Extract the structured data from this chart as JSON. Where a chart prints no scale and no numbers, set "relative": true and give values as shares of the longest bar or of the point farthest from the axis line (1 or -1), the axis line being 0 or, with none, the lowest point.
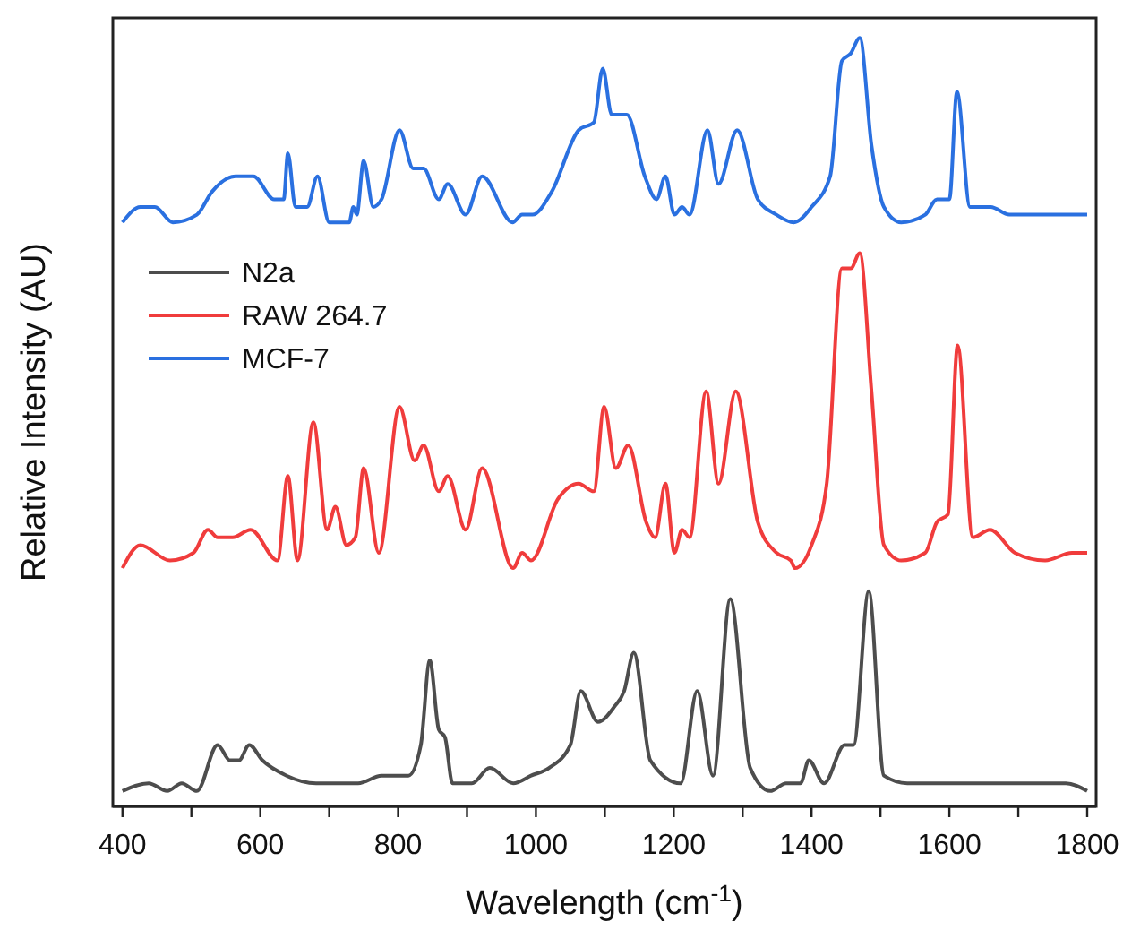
{
  "chart_data": {
    "type": "line",
    "relative": true,
    "xlabel": "Wavelength (cm$^{-1}$)",
    "ylabel": "Relative Intensity (AU)",
    "xlim": [
      386,
      1813
    ],
    "xticks": [
      400,
      {
        "value": 500,
        "label": null
      },
      600,
      {
        "value": 700,
        "label": null
      },
      800,
      {
        "value": 900,
        "label": null
      },
      1000,
      {
        "value": 1100,
        "label": null
      },
      1200,
      {
        "value": 1300,
        "label": null
      },
      1400,
      {
        "value": 1500,
        "label": null
      },
      1600,
      {
        "value": 1700,
        "label": null
      },
      1800
    ],
    "legend": "top left",
    "grid": false,
    "line_style": "solid",
    "marker": "none",
    "series": [
      {
        "name": "N2a",
        "color": "#4d4d4d",
        "x": [
          400,
          438,
          465,
          486,
          508,
          538,
          556,
          569,
          584,
          603,
          638,
          681,
          707,
          742,
          776,
          815,
          833,
          846,
          859,
          868,
          879,
          907,
          933,
          967,
          993,
          1019,
          1050,
          1065,
          1090,
          1114,
          1128,
          1142,
          1166,
          1210,
          1234,
          1257,
          1282,
          1311,
          1340,
          1363,
          1384,
          1396,
          1418,
          1448,
          1461,
          1483,
          1505,
          1539,
          1617,
          1721,
          1769,
          1800
        ],
        "values": [
          0.02,
          0.03,
          0.02,
          0.03,
          0.02,
          0.08,
          0.06,
          0.06,
          0.08,
          0.06,
          0.04,
          0.03,
          0.03,
          0.03,
          0.04,
          0.04,
          0.08,
          0.19,
          0.1,
          0.09,
          0.03,
          0.03,
          0.05,
          0.03,
          0.04,
          0.05,
          0.08,
          0.15,
          0.11,
          0.13,
          0.15,
          0.2,
          0.06,
          0.03,
          0.15,
          0.04,
          0.27,
          0.05,
          0.02,
          0.03,
          0.03,
          0.06,
          0.03,
          0.08,
          0.08,
          0.28,
          0.04,
          0.03,
          0.03,
          0.03,
          0.03,
          0.02
        ]
      },
      {
        "name": "RAW 264.7",
        "color": "#f03c3c",
        "x": [
          400,
          426,
          469,
          503,
          524,
          538,
          560,
          586,
          625,
          640,
          654,
          677,
          697,
          709,
          725,
          738,
          750,
          772,
          802,
          824,
          837,
          859,
          872,
          898,
          922,
          967,
          980,
          993,
          1032,
          1062,
          1084,
          1099,
          1116,
          1134,
          1160,
          1173,
          1188,
          1201,
          1212,
          1223,
          1247,
          1265,
          1290,
          1322,
          1349,
          1370,
          1376,
          1400,
          1422,
          1444,
          1457,
          1470,
          1487,
          1505,
          1530,
          1565,
          1582,
          1598,
          1612,
          1634,
          1659,
          1695,
          1739,
          1778,
          1800
        ],
        "values": [
          0.31,
          0.34,
          0.32,
          0.33,
          0.36,
          0.35,
          0.35,
          0.36,
          0.32,
          0.43,
          0.32,
          0.5,
          0.36,
          0.39,
          0.34,
          0.35,
          0.44,
          0.33,
          0.52,
          0.45,
          0.47,
          0.41,
          0.43,
          0.36,
          0.44,
          0.31,
          0.33,
          0.32,
          0.4,
          0.42,
          0.41,
          0.52,
          0.44,
          0.47,
          0.37,
          0.35,
          0.42,
          0.33,
          0.36,
          0.35,
          0.54,
          0.42,
          0.54,
          0.37,
          0.33,
          0.32,
          0.31,
          0.34,
          0.42,
          0.7,
          0.7,
          0.72,
          0.54,
          0.34,
          0.32,
          0.33,
          0.37,
          0.38,
          0.6,
          0.35,
          0.36,
          0.33,
          0.32,
          0.33,
          0.33
        ]
      },
      {
        "name": "MCF-7",
        "color": "#2a70e0",
        "x": [
          400,
          426,
          447,
          473,
          508,
          530,
          564,
          590,
          620,
          634,
          640,
          651,
          668,
          683,
          700,
          729,
          735,
          740,
          750,
          764,
          776,
          802,
          822,
          837,
          859,
          872,
          898,
          922,
          966,
          980,
          995,
          1023,
          1062,
          1084,
          1097,
          1110,
          1132,
          1158,
          1175,
          1188,
          1201,
          1212,
          1223,
          1249,
          1265,
          1292,
          1322,
          1349,
          1374,
          1400,
          1427,
          1444,
          1457,
          1470,
          1487,
          1505,
          1530,
          1565,
          1582,
          1600,
          1611,
          1630,
          1660,
          1687,
          1739,
          1800
        ],
        "values": [
          0.76,
          0.78,
          0.78,
          0.76,
          0.77,
          0.8,
          0.82,
          0.82,
          0.79,
          0.79,
          0.85,
          0.78,
          0.78,
          0.82,
          0.76,
          0.76,
          0.78,
          0.77,
          0.84,
          0.78,
          0.79,
          0.88,
          0.83,
          0.83,
          0.79,
          0.81,
          0.77,
          0.82,
          0.76,
          0.77,
          0.77,
          0.8,
          0.88,
          0.89,
          0.96,
          0.9,
          0.9,
          0.82,
          0.79,
          0.82,
          0.77,
          0.78,
          0.77,
          0.88,
          0.81,
          0.88,
          0.79,
          0.77,
          0.76,
          0.78,
          0.82,
          0.97,
          0.98,
          1.0,
          0.86,
          0.78,
          0.76,
          0.77,
          0.79,
          0.79,
          0.93,
          0.78,
          0.78,
          0.77,
          0.77,
          0.77
        ]
      }
    ]
  }
}
